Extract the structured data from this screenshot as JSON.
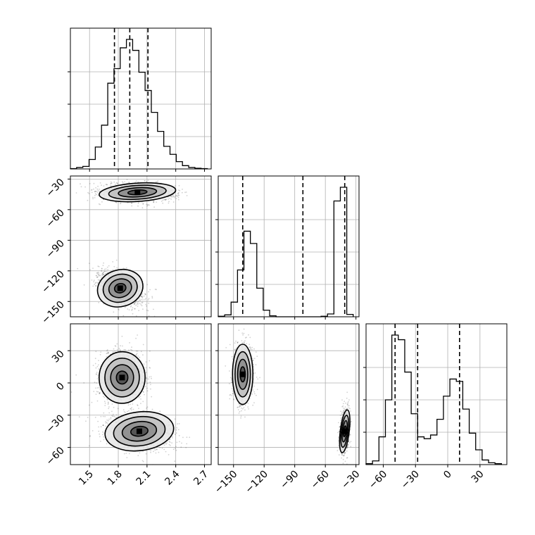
{
  "chart_data": {
    "type": "corner",
    "parameters": [
      {
        "range": [
          1.3,
          2.77
        ],
        "ticks": [
          1.5,
          1.8,
          2.1,
          2.4,
          2.7
        ],
        "tick_labels": [
          "1.5",
          "1.8",
          "2.1",
          "2.4",
          "2.7"
        ],
        "quantiles": [
          1.76,
          1.92,
          2.11
        ],
        "hist": {
          "edges": [
            1.3,
            1.365,
            1.43,
            1.495,
            1.56,
            1.625,
            1.69,
            1.755,
            1.82,
            1.885,
            1.95,
            2.015,
            2.08,
            2.145,
            2.21,
            2.275,
            2.34,
            2.405,
            2.47,
            2.535,
            2.6,
            2.665,
            2.73
          ],
          "counts": [
            1,
            4,
            7,
            26,
            60,
            120,
            235,
            275,
            332,
            355,
            325,
            265,
            215,
            155,
            103,
            62,
            40,
            20,
            9,
            4,
            2,
            1
          ]
        }
      },
      {
        "range": [
          -165,
          -27
        ],
        "ticks": [
          -150,
          -120,
          -90,
          -60,
          -30
        ],
        "tick_labels": [
          "−150",
          "−120",
          "−90",
          "−60",
          "−30"
        ],
        "quantiles": [
          -141,
          -82,
          -41
        ],
        "hist": {
          "edges": [
            -165,
            -158.7,
            -152.4,
            -146.1,
            -139.8,
            -133.5,
            -127.2,
            -120.9,
            -114.6,
            -108.3,
            -102,
            -95.7,
            -89.4,
            -83.1,
            -76.8,
            -70.5,
            -64.2,
            -57.9,
            -51.6,
            -45.3,
            -39,
            -32.7
          ],
          "counts": [
            2,
            8,
            62,
            198,
            362,
            310,
            121,
            28,
            4,
            0,
            0,
            0,
            0,
            0,
            0,
            0,
            2,
            12,
            490,
            548,
            10
          ]
        }
      },
      {
        "range": [
          -76,
          55
        ],
        "ticks": [
          -60,
          -30,
          0,
          30
        ],
        "tick_labels": [
          "−60",
          "−30",
          "0",
          "30"
        ],
        "quantiles": [
          -49,
          -28,
          11
        ],
        "hist": {
          "edges": [
            -76,
            -70,
            -64,
            -58,
            -52,
            -46,
            -40,
            -34,
            -28,
            -22,
            -16,
            -10,
            -4,
            2,
            8,
            14,
            20,
            26,
            32,
            38,
            44,
            50
          ],
          "counts": [
            2,
            8,
            60,
            140,
            280,
            270,
            200,
            110,
            60,
            56,
            64,
            98,
            148,
            185,
            180,
            120,
            68,
            32,
            10,
            4,
            2
          ]
        }
      }
    ],
    "joint": [
      {
        "x_param": 0,
        "y_param": 1,
        "modes": [
          {
            "center": [
              2.0,
              -43
            ],
            "sx": 0.2,
            "sy": 4.5,
            "rho": -0.1,
            "weight": 0.5
          },
          {
            "center": [
              1.82,
              -137
            ],
            "sx": 0.12,
            "sy": 9,
            "rho": -0.45,
            "weight": 0.5
          }
        ]
      },
      {
        "x_param": 0,
        "y_param": 2,
        "modes": [
          {
            "center": [
              1.84,
              5
            ],
            "sx": 0.12,
            "sy": 12,
            "rho": 0.05,
            "weight": 0.5
          },
          {
            "center": [
              2.02,
              -45
            ],
            "sx": 0.18,
            "sy": 9,
            "rho": -0.2,
            "weight": 0.5
          }
        ]
      },
      {
        "x_param": 1,
        "y_param": 2,
        "modes": [
          {
            "center": [
              -141,
              8
            ],
            "sx": 5,
            "sy": 14,
            "rho": 0.0,
            "weight": 0.5
          },
          {
            "center": [
              -41,
              -45
            ],
            "sx": 2.2,
            "sy": 10,
            "rho": 0.2,
            "weight": 0.5
          }
        ]
      }
    ],
    "grid": true
  }
}
